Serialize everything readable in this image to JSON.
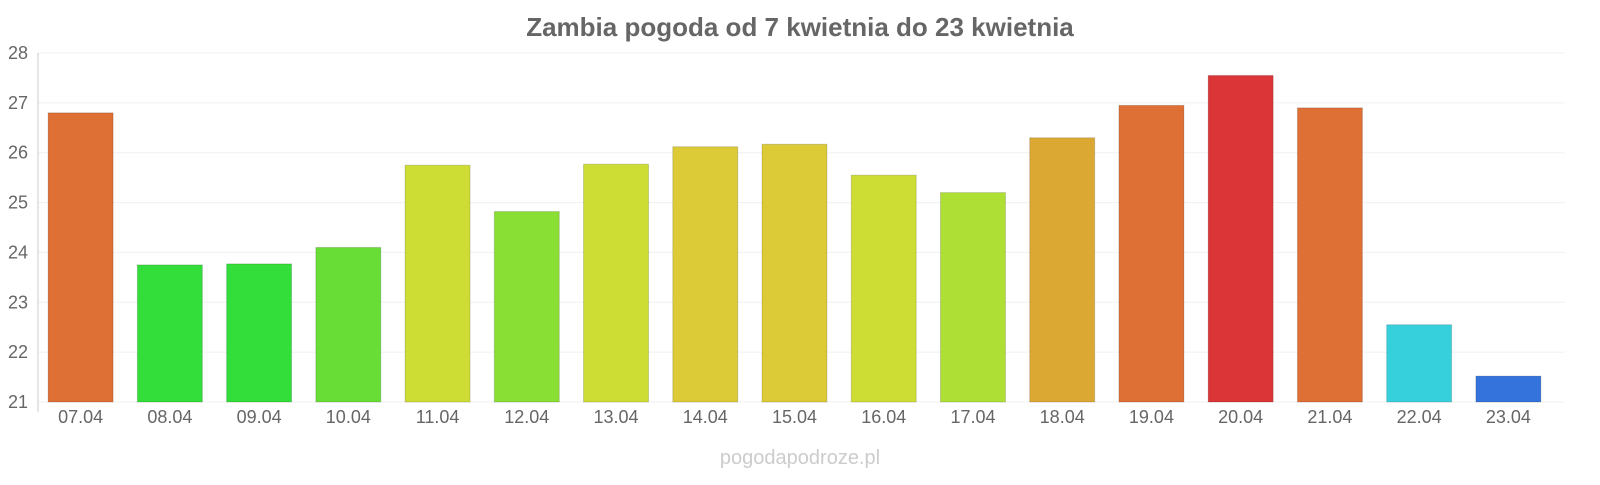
{
  "chart_data": {
    "type": "bar",
    "title": "Zambia pogoda od 7 kwietnia do 23 kwietnia",
    "xlabel": "",
    "ylabel": "",
    "ylim": [
      21,
      28
    ],
    "yticks": [
      "21",
      "22",
      "23",
      "24",
      "25",
      "26",
      "27",
      "28"
    ],
    "grid": true,
    "legend": "none",
    "categories": [
      "07.04",
      "08.04",
      "09.04",
      "10.04",
      "11.04",
      "12.04",
      "13.04",
      "14.04",
      "15.04",
      "16.04",
      "17.04",
      "18.04",
      "19.04",
      "20.04",
      "21.04",
      "22.04",
      "23.04"
    ],
    "values": [
      26.8,
      23.75,
      23.77,
      24.1,
      25.75,
      24.82,
      25.77,
      26.12,
      26.17,
      25.55,
      25.2,
      26.3,
      26.95,
      27.55,
      26.9,
      22.55,
      21.52
    ],
    "colors": [
      "#de6f35",
      "#33dd3a",
      "#33dd3a",
      "#67dd36",
      "#cedd33",
      "#8adf35",
      "#cedd33",
      "#dcca36",
      "#dcca36",
      "#cedd33",
      "#addf35",
      "#dca834",
      "#de6f35",
      "#dc3537",
      "#de6f35",
      "#36d0dc",
      "#3473dc"
    ]
  },
  "watermark": "pogodapodroze.pl"
}
